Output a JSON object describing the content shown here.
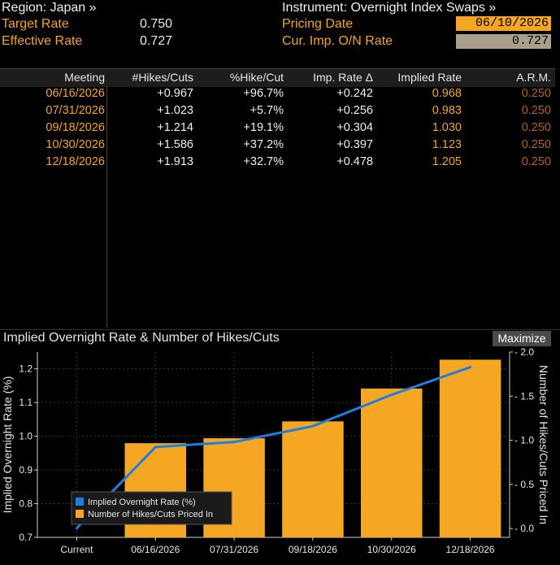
{
  "header": {
    "region_label": "Region: Japan »",
    "target_rate_label": "Target Rate",
    "target_rate_value": "0.750",
    "effective_rate_label": "Effective Rate",
    "effective_rate_value": "0.727",
    "instrument_label": "Instrument: Overnight Index Swaps »",
    "pricing_date_label": "Pricing Date",
    "pricing_date_value": "06/10/2026",
    "cur_imp_label": "Cur. Imp. O/N Rate",
    "cur_imp_value": "0.727"
  },
  "table": {
    "headers": [
      "Meeting",
      "#Hikes/Cuts",
      "%Hike/Cut",
      "Imp. Rate Δ",
      "Implied Rate",
      "A.R.M."
    ],
    "rows": [
      [
        "06/16/2026",
        "+0.967",
        "+96.7%",
        "+0.242",
        "0.968",
        "0.250"
      ],
      [
        "07/31/2026",
        "+1.023",
        "+5.7%",
        "+0.256",
        "0.983",
        "0.250"
      ],
      [
        "09/18/2026",
        "+1.214",
        "+19.1%",
        "+0.304",
        "1.030",
        "0.250"
      ],
      [
        "10/30/2026",
        "+1.586",
        "+37.2%",
        "+0.397",
        "1.123",
        "0.250"
      ],
      [
        "12/18/2026",
        "+1.913",
        "+32.7%",
        "+0.478",
        "1.205",
        "0.250"
      ]
    ]
  },
  "chart_panel": {
    "title": "Implied Overnight Rate & Number of Hikes/Cuts",
    "maximize_label": "Maximize"
  },
  "chart_data": {
    "type": "bar+line",
    "categories": [
      "Current",
      "06/16/2026",
      "07/31/2026",
      "09/18/2026",
      "10/30/2026",
      "12/18/2026"
    ],
    "series": [
      {
        "name": "Implied Overnight Rate (%)",
        "type": "line",
        "axis": "left",
        "color": "#1e7fe0",
        "values": [
          0.727,
          0.968,
          0.983,
          1.03,
          1.123,
          1.205
        ]
      },
      {
        "name": "Number of Hikes/Cuts Priced In",
        "type": "bar",
        "axis": "right",
        "color": "#f5a623",
        "values": [
          0,
          0.967,
          1.023,
          1.214,
          1.586,
          1.913
        ]
      }
    ],
    "ylabel": "Implied Overnight Rate (%)",
    "y2label": "Number of Hikes/Cuts Priced In",
    "ylim": [
      0.7,
      1.25
    ],
    "y2lim": [
      -0.1,
      2.0
    ],
    "yticks": [
      "0.7",
      "0.8",
      "0.9",
      "1.0",
      "1.1",
      "1.2"
    ],
    "y2ticks": [
      "0.0",
      "0.5",
      "1.0",
      "1.5",
      "2.0"
    ],
    "grid": true,
    "legend_position": "bottom-left"
  },
  "colors": {
    "accent_orange": "#f5a623",
    "line_blue": "#1e7fe0",
    "background": "#000000"
  }
}
